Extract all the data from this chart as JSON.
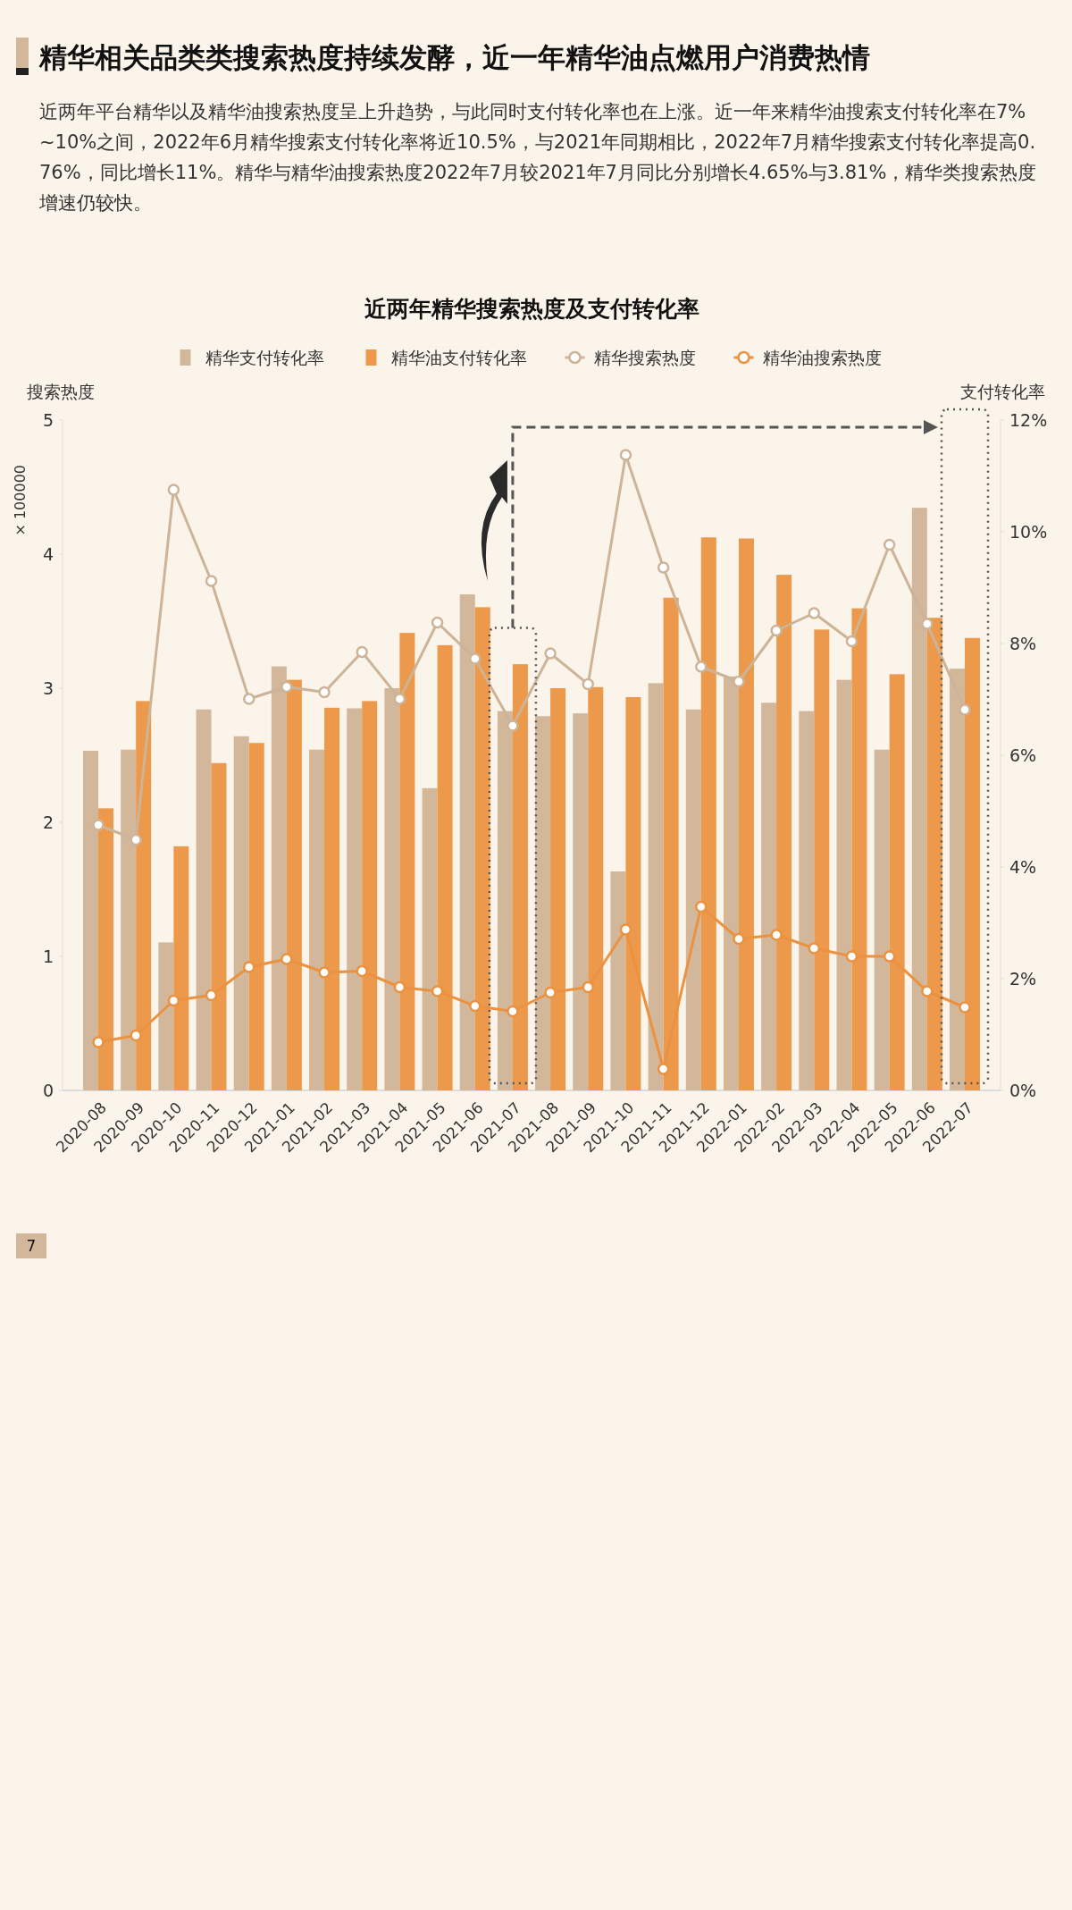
{
  "chart_data": {
    "type": "bar",
    "title": "精华相关品类类搜索热度持续发酵，近一年精华油点燃用户消费热情",
    "subtitle": "近两年平台精华以及精华油搜索热度呈上升趋势，与此同时支付转化率也在上涨。近一年来精华油搜索支付转化率在7%~10%之间，2022年6月精华搜索支付转化率将近10.5%，与2021年同期相比，2022年7月精华搜索支付转化率提高0.76%，同比增长11%。精华与精华油搜索热度2022年7月较2021年7月同比分别增长4.65%与3.81%，精华类搜索热度增速仍较快。",
    "xlabel": "近两年精华搜索热度及支付转化率",
    "ylabel": "搜索热度",
    "y2label": "支付转化率",
    "annotations": [
      "× 100000",
      "7"
    ],
    "categories": [
      "2020-08",
      "2020-09",
      "2020-10",
      "2020-11",
      "2020-12",
      "2021-01",
      "2021-02",
      "2021-03",
      "2021-04",
      "2021-05",
      "2021-06",
      "2021-07",
      "2021-08",
      "2021-09",
      "2021-10",
      "2021-11",
      "2021-12",
      "2022-01",
      "2022-02",
      "2022-03",
      "2022-04",
      "2022-05",
      "2022-06",
      "2022-07"
    ],
    "series": [
      {
        "name": "精华支付转化率",
        "type": "bar",
        "axis": "y2",
        "color": "#d2b79b",
        "values": [
          6.08,
          6.1,
          2.65,
          6.82,
          6.34,
          7.59,
          6.1,
          6.84,
          7.2,
          5.41,
          8.88,
          6.79,
          6.7,
          6.75,
          3.92,
          7.29,
          6.82,
          7.41,
          6.94,
          6.79,
          7.35,
          6.1,
          10.43,
          7.55
        ]
      },
      {
        "name": "精华油支付转化率",
        "type": "bar",
        "axis": "y2",
        "color": "#ec994b",
        "values": [
          5.05,
          6.97,
          4.37,
          5.86,
          6.22,
          7.35,
          6.85,
          6.97,
          8.19,
          7.97,
          8.65,
          7.63,
          7.2,
          7.22,
          7.04,
          8.82,
          9.9,
          9.88,
          9.23,
          8.25,
          8.63,
          7.45,
          8.46,
          8.1
        ]
      },
      {
        "name": "精华搜索热度",
        "type": "line",
        "color": "#cdb498",
        "values": [
          1.98,
          1.87,
          4.48,
          3.8,
          2.92,
          3.01,
          2.97,
          3.27,
          2.92,
          3.49,
          3.22,
          2.72,
          3.26,
          3.03,
          4.74,
          3.9,
          3.16,
          3.05,
          3.43,
          3.56,
          3.35,
          4.07,
          3.48,
          2.84
        ]
      },
      {
        "name": "精华油搜索热度",
        "type": "line",
        "color": "#eb9240",
        "values": [
          0.36,
          0.41,
          0.67,
          0.71,
          0.92,
          0.98,
          0.88,
          0.89,
          0.77,
          0.74,
          0.63,
          0.59,
          0.73,
          0.77,
          1.2,
          0.16,
          1.37,
          1.13,
          1.16,
          1.06,
          1.0,
          1.0,
          0.74,
          0.62
        ]
      }
    ],
    "ylim": [
      0,
      5
    ],
    "yticks": [
      0,
      1,
      2,
      3,
      4,
      5
    ],
    "y2lim": [
      0,
      12
    ],
    "y2ticks": [
      {
        "value": 0,
        "label": "0%"
      },
      {
        "value": 2,
        "label": "2%"
      },
      {
        "value": 4,
        "label": "4%"
      },
      {
        "value": 6,
        "label": "6%"
      },
      {
        "value": 8,
        "label": "8%"
      },
      {
        "value": 10,
        "label": "10%"
      },
      {
        "value": 12,
        "label": "12%"
      }
    ],
    "marker": "circle",
    "legend": "top"
  }
}
